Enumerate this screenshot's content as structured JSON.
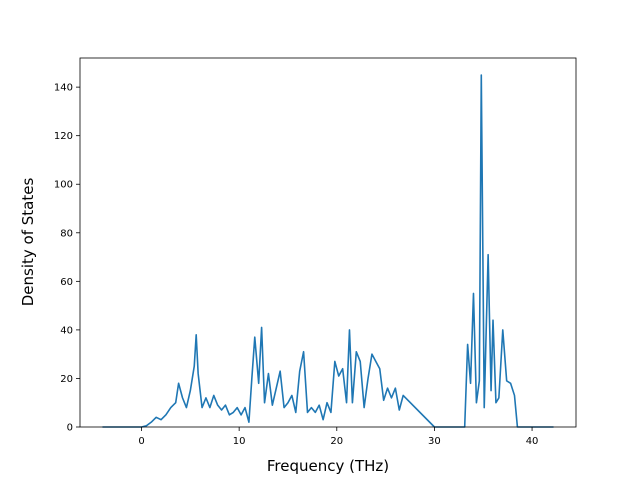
{
  "chart_data": {
    "type": "line",
    "title": "",
    "xlabel": "Frequency (THz)",
    "ylabel": "Density of States",
    "xlim": [
      -6.3,
      44.5
    ],
    "ylim": [
      0,
      152
    ],
    "xticks": [
      0,
      10,
      20,
      30,
      40
    ],
    "yticks": [
      0,
      20,
      40,
      60,
      80,
      100,
      120,
      140
    ],
    "grid": false,
    "line_color": "#1f77b4",
    "series": [
      {
        "x": [
          -4.0,
          -2.0,
          0.0,
          0.5,
          1.0,
          1.5,
          2.0,
          2.5,
          3.0,
          3.5,
          3.8,
          4.2,
          4.6,
          5.0,
          5.4,
          5.6,
          5.8,
          6.2,
          6.6,
          7.0,
          7.4,
          7.8,
          8.2,
          8.6,
          9.0,
          9.4,
          9.8,
          10.2,
          10.6,
          11.0,
          11.3,
          11.6,
          12.0,
          12.3,
          12.6,
          13.0,
          13.4,
          13.8,
          14.2,
          14.6,
          15.0,
          15.4,
          15.8,
          16.2,
          16.6,
          17.0,
          17.4,
          17.8,
          18.2,
          18.6,
          19.0,
          19.4,
          19.8,
          20.2,
          20.6,
          21.0,
          21.3,
          21.6,
          22.0,
          22.4,
          22.8,
          23.2,
          23.6,
          24.0,
          24.4,
          24.8,
          25.2,
          25.6,
          26.0,
          26.4,
          26.8,
          30.0,
          32.8,
          33.1,
          33.4,
          33.7,
          34.0,
          34.3,
          34.6,
          34.8,
          35.1,
          35.5,
          35.8,
          36.0,
          36.3,
          36.6,
          37.0,
          37.4,
          37.8,
          38.2,
          38.5,
          38.7,
          40.0,
          42.2
        ],
        "y": [
          0,
          0,
          0,
          0.5,
          2,
          4,
          3,
          5,
          8,
          10,
          18,
          12,
          8,
          15,
          25,
          38,
          22,
          8,
          12,
          8,
          13,
          9,
          7,
          9,
          5,
          6,
          8,
          5,
          8,
          2,
          20,
          37,
          18,
          41,
          10,
          22,
          9,
          16,
          23,
          8,
          10,
          13,
          6,
          23,
          31,
          6,
          8,
          6,
          9,
          3,
          10,
          6,
          27,
          21,
          24,
          10,
          40,
          10,
          31,
          27,
          8,
          20,
          30,
          27,
          24,
          11,
          16,
          12,
          16,
          7,
          13,
          0,
          0,
          0,
          34,
          18,
          55,
          10,
          19,
          145,
          8,
          71,
          15,
          44,
          10,
          12,
          40,
          19,
          18,
          13,
          0,
          0,
          0,
          0
        ]
      }
    ]
  }
}
